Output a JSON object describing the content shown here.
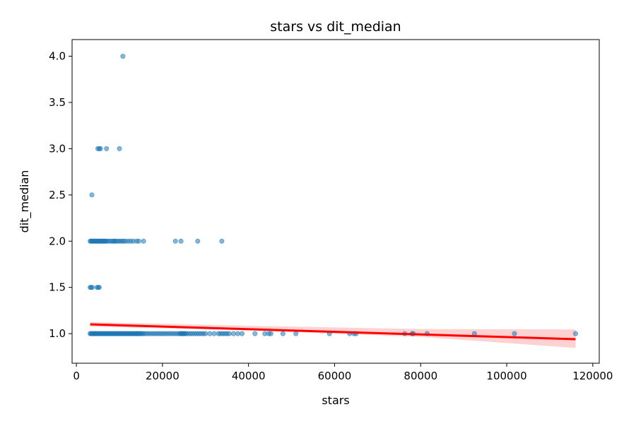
{
  "chart_data": {
    "type": "scatter",
    "title": "stars vs dit_median",
    "xlabel": "stars",
    "ylabel": "dit_median",
    "xlim": [
      -1000,
      121500
    ],
    "ylim": [
      0.68,
      4.18
    ],
    "xticks": [
      0,
      20000,
      40000,
      60000,
      80000,
      100000,
      120000
    ],
    "xtick_labels": [
      "0",
      "20000",
      "40000",
      "60000",
      "80000",
      "100000",
      "120000"
    ],
    "yticks": [
      1.0,
      1.5,
      2.0,
      2.5,
      3.0,
      3.5,
      4.0
    ],
    "ytick_labels": [
      "1.0",
      "1.5",
      "2.0",
      "2.5",
      "3.0",
      "3.5",
      "4.0"
    ],
    "grid": false,
    "colors": {
      "points": "#1f77b4",
      "regression_line": "#ff0000",
      "confidence_band": "#ff9999"
    },
    "series": [
      {
        "type": "scatter",
        "y_groups": [
          {
            "y": 4.0,
            "x": [
              10800
            ]
          },
          {
            "y": 3.0,
            "x": [
              5000,
              5300,
              5600,
              7000,
              10000
            ]
          },
          {
            "y": 2.5,
            "x": [
              3600
            ]
          },
          {
            "y": 2.0,
            "x": [
              3200,
              3400,
              3600,
              3800,
              4000,
              4200,
              4400,
              4600,
              4800,
              5000,
              5200,
              5400,
              5600,
              5800,
              6000,
              6200,
              6400,
              6600,
              6800,
              7000,
              7400,
              7800,
              8200,
              8600,
              8800,
              9000,
              9400,
              9800,
              10200,
              10600,
              11000,
              11400,
              12000,
              12600,
              13200,
              14000,
              14500,
              15600,
              23000,
              24300,
              28200,
              33800
            ]
          },
          {
            "y": 1.5,
            "x": [
              3200,
              3400,
              3700,
              4800,
              5100,
              5300
            ]
          },
          {
            "y": 1.0,
            "x": [
              3200,
              3400,
              3600,
              3800,
              4000,
              4200,
              4400,
              4600,
              4800,
              5000,
              5200,
              5400,
              5600,
              5800,
              6000,
              6200,
              6400,
              6600,
              6800,
              7000,
              7200,
              7400,
              7600,
              7800,
              8000,
              8200,
              8400,
              8600,
              8800,
              9000,
              9200,
              9400,
              9600,
              9800,
              10000,
              10200,
              10400,
              10600,
              10800,
              11000,
              11200,
              11400,
              11600,
              11800,
              12000,
              12200,
              12400,
              12600,
              12800,
              13000,
              13200,
              13400,
              13600,
              13800,
              14000,
              14200,
              14400,
              14600,
              14800,
              15000,
              15300,
              15600,
              16000,
              16500,
              17000,
              17500,
              18000,
              18500,
              19000,
              19500,
              20000,
              20500,
              21000,
              21500,
              22000,
              22500,
              23000,
              23500,
              24000,
              24200,
              24400,
              24600,
              24800,
              25000,
              25200,
              25500,
              26000,
              26500,
              27000,
              27500,
              28000,
              28500,
              29000,
              29500,
              30000,
              31000,
              32000,
              33000,
              33500,
              34000,
              34500,
              35000,
              35500,
              36500,
              37500,
              38500,
              41500,
              43800,
              44700,
              45200,
              48000,
              51000,
              58800,
              63500,
              64500,
              65000,
              76300,
              78000,
              78300,
              81500,
              92500,
              101800,
              116000
            ]
          }
        ]
      },
      {
        "type": "line",
        "x": [
          3200,
          116000
        ],
        "y": [
          1.1,
          0.94
        ],
        "band": {
          "x": [
            3200,
            40000,
            80000,
            116000
          ],
          "upper": [
            1.125,
            1.085,
            1.05,
            1.045
          ],
          "lower": [
            1.075,
            1.035,
            0.965,
            0.845
          ]
        }
      }
    ]
  }
}
